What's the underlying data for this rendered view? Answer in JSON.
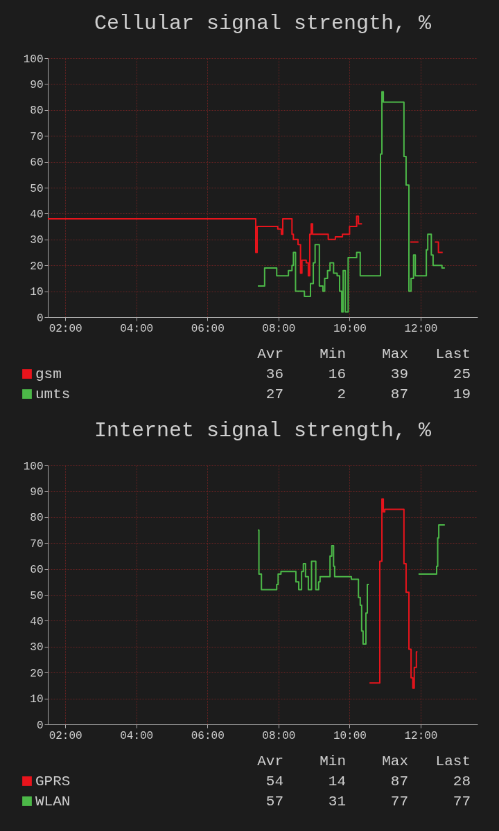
{
  "chart_data": [
    {
      "type": "step",
      "title": "Cellular signal strength, %",
      "xlim": [
        1.51,
        13.6
      ],
      "xticks": [
        {
          "value": 2,
          "label": "02:00"
        },
        {
          "value": 4,
          "label": "04:00"
        },
        {
          "value": 6,
          "label": "06:00"
        },
        {
          "value": 8,
          "label": "08:00"
        },
        {
          "value": 10,
          "label": "10:00"
        },
        {
          "value": 12,
          "label": "12:00"
        }
      ],
      "ylim": [
        0,
        100
      ],
      "yticks": [
        0,
        10,
        20,
        30,
        40,
        50,
        60,
        70,
        80,
        90,
        100
      ],
      "grid": true,
      "legend": "bottom",
      "series": [
        {
          "name": "gsm",
          "color": "#e8141c",
          "x": [
            1.51,
            7.36,
            7.4,
            7.98,
            8.08,
            8.12,
            8.38,
            8.42,
            8.55,
            8.62,
            8.66,
            8.78,
            8.84,
            8.88,
            8.92,
            8.96,
            9.4,
            9.6,
            9.8,
            10.0,
            10.2,
            10.25,
            10.35,
            10.36,
            11.71,
            11.94,
            11.95,
            12.4,
            12.5,
            12.62
          ],
          "values": [
            38,
            25,
            35,
            34,
            32,
            38,
            32,
            30,
            28,
            17,
            22,
            21,
            16,
            32,
            36,
            32,
            30,
            31,
            32,
            35,
            39,
            36,
            36,
            null,
            29,
            29,
            null,
            29,
            25,
            25
          ]
        },
        {
          "name": "umts",
          "color": "#4cb848",
          "x": [
            7.42,
            7.61,
            7.95,
            8.28,
            8.38,
            8.42,
            8.48,
            8.73,
            8.9,
            8.98,
            9.03,
            9.15,
            9.25,
            9.3,
            9.38,
            9.45,
            9.55,
            9.65,
            9.72,
            9.78,
            9.82,
            9.88,
            9.96,
            10.2,
            10.3,
            10.87,
            10.91,
            10.95,
            11.53,
            11.59,
            11.67,
            11.73,
            11.8,
            11.85,
            12.16,
            12.2,
            12.3,
            12.35,
            12.6,
            12.68
          ],
          "values": [
            12,
            19,
            16,
            18,
            20,
            25,
            10,
            8,
            13,
            21,
            28,
            12,
            10,
            15,
            18,
            21,
            17,
            16,
            10,
            2,
            18,
            2,
            23,
            25,
            16,
            63,
            87,
            83,
            62,
            51,
            10,
            15,
            24,
            16,
            26,
            32,
            24,
            20,
            19,
            19
          ]
        }
      ],
      "annotations": [
        "Avr",
        "Min",
        "Max",
        "Last",
        "36",
        "16",
        "39",
        "25",
        "27",
        "2",
        "87",
        "19"
      ]
    },
    {
      "type": "step",
      "title": "Internet signal strength, %",
      "xlim": [
        1.51,
        13.6
      ],
      "xticks": [
        {
          "value": 2,
          "label": "02:00"
        },
        {
          "value": 4,
          "label": "04:00"
        },
        {
          "value": 6,
          "label": "06:00"
        },
        {
          "value": 8,
          "label": "08:00"
        },
        {
          "value": 10,
          "label": "10:00"
        },
        {
          "value": 12,
          "label": "12:00"
        }
      ],
      "ylim": [
        0,
        100
      ],
      "yticks": [
        0,
        10,
        20,
        30,
        40,
        50,
        60,
        70,
        80,
        90,
        100
      ],
      "grid": true,
      "legend": "bottom",
      "series": [
        {
          "name": "GPRS",
          "color": "#e8141c",
          "x": [
            10.56,
            10.85,
            10.91,
            10.95,
            10.99,
            11.53,
            11.59,
            11.67,
            11.73,
            11.78,
            11.82,
            11.88,
            11.91
          ],
          "values": [
            16,
            63,
            87,
            82,
            83,
            62,
            51,
            29,
            18,
            14,
            22,
            28,
            28
          ]
        },
        {
          "name": "WLAN",
          "color": "#4cb848",
          "x": [
            7.42,
            7.45,
            7.52,
            7.95,
            7.99,
            8.07,
            8.49,
            8.57,
            8.65,
            8.7,
            8.76,
            8.84,
            8.93,
            9.05,
            9.13,
            9.17,
            9.2,
            9.45,
            9.5,
            9.55,
            9.58,
            10.05,
            10.25,
            10.3,
            10.34,
            10.38,
            10.46,
            10.5,
            10.54,
            10.55,
            11.94,
            12.45,
            12.48,
            12.51,
            12.68
          ],
          "values": [
            75,
            58,
            52,
            54,
            58,
            59,
            55,
            52,
            59,
            62,
            57,
            52,
            63,
            52,
            55,
            57,
            57,
            65,
            69,
            61,
            57,
            56,
            49,
            46,
            36,
            31,
            43,
            54,
            54,
            null,
            58,
            61,
            72,
            77,
            77
          ]
        }
      ],
      "annotations": [
        "Avr",
        "Min",
        "Max",
        "Last",
        "54",
        "14",
        "87",
        "28",
        "57",
        "31",
        "77",
        "77"
      ]
    }
  ]
}
